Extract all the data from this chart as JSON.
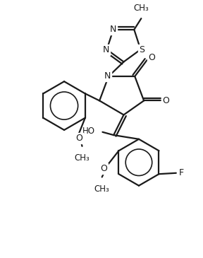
{
  "bg_color": "#ffffff",
  "line_color": "#1a1a1a",
  "line_width": 1.6,
  "figsize": [
    2.88,
    3.65
  ],
  "dpi": 100,
  "xlim": [
    0,
    10
  ],
  "ylim": [
    0,
    12.7
  ]
}
